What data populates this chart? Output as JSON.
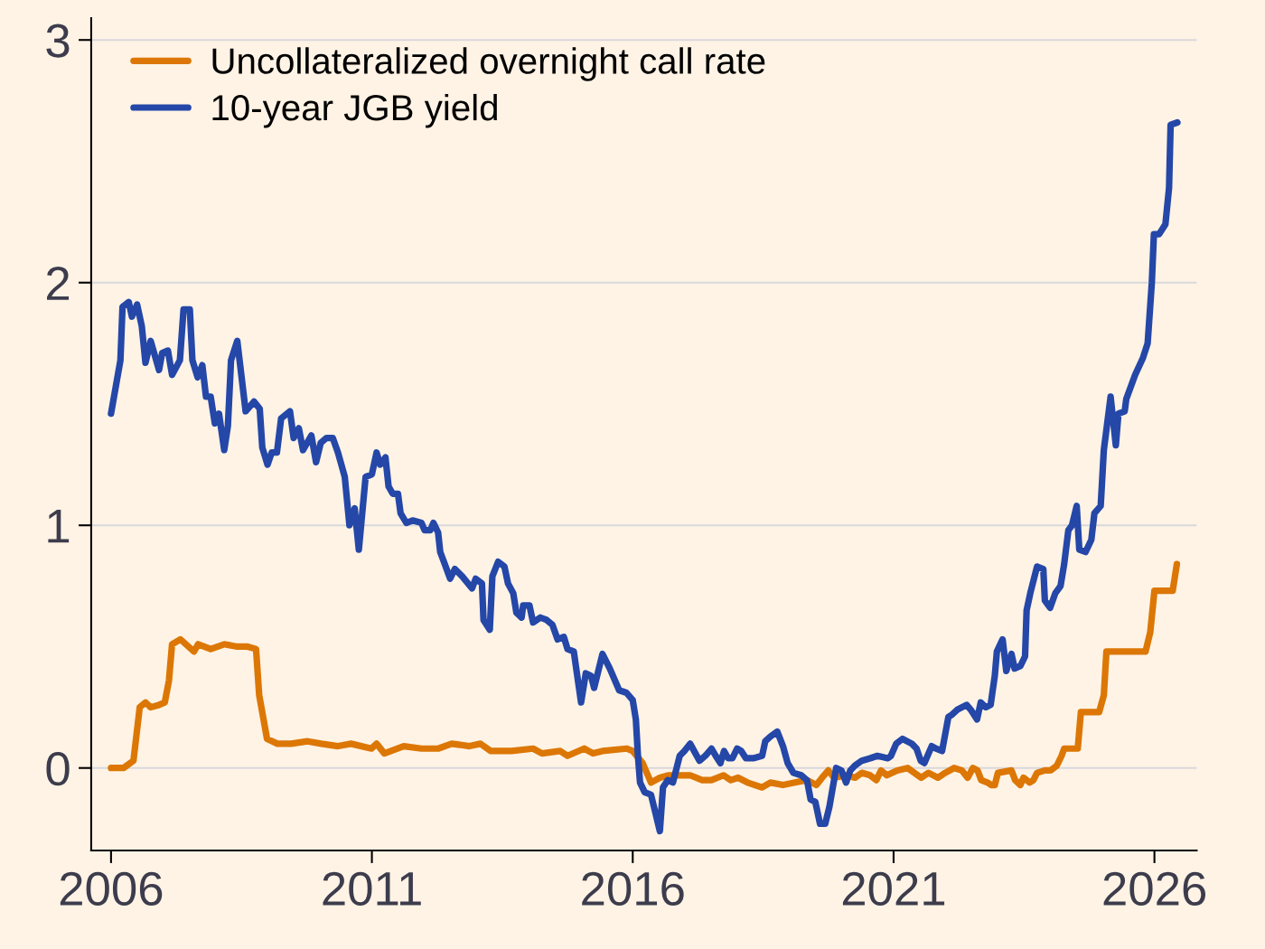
{
  "chart_data": {
    "type": "line",
    "series": [
      {
        "name": "Uncollateralized overnight call rate",
        "color": "#dc7705",
        "x": [
          2006.0,
          2006.24,
          2006.43,
          2006.55,
          2006.66,
          2006.76,
          2006.92,
          2007.03,
          2007.11,
          2007.17,
          2007.33,
          2007.59,
          2007.67,
          2007.91,
          2008.17,
          2008.42,
          2008.62,
          2008.78,
          2008.84,
          2008.99,
          2009.19,
          2009.45,
          2009.77,
          2010.03,
          2010.35,
          2010.6,
          2010.99,
          2011.09,
          2011.24,
          2011.61,
          2011.95,
          2012.27,
          2012.53,
          2012.87,
          2013.08,
          2013.28,
          2013.68,
          2014.09,
          2014.26,
          2014.61,
          2014.75,
          2015.07,
          2015.24,
          2015.42,
          2015.88,
          2016.0,
          2016.19,
          2016.35,
          2016.52,
          2016.69,
          2017.1,
          2017.33,
          2017.51,
          2017.74,
          2017.88,
          2018.02,
          2018.2,
          2018.48,
          2018.64,
          2018.88,
          2019.11,
          2019.34,
          2019.52,
          2019.63,
          2019.75,
          2019.86,
          2020.09,
          2020.26,
          2020.39,
          2020.55,
          2020.67,
          2020.76,
          2020.87,
          2021.07,
          2021.27,
          2021.53,
          2021.67,
          2021.85,
          2021.99,
          2022.16,
          2022.31,
          2022.42,
          2022.52,
          2022.61,
          2022.68,
          2022.8,
          2022.87,
          2022.94,
          2023.0,
          2023.26,
          2023.33,
          2023.43,
          2023.49,
          2023.61,
          2023.68,
          2023.75,
          2023.9,
          2024.01,
          2024.13,
          2024.22,
          2024.27,
          2024.53,
          2024.59,
          2024.94,
          2025.03,
          2025.08,
          2025.83,
          2025.92,
          2026.0,
          2026.35,
          2026.43
        ],
        "values": [
          0.0,
          0.0,
          0.03,
          0.25,
          0.27,
          0.25,
          0.26,
          0.27,
          0.36,
          0.51,
          0.53,
          0.48,
          0.51,
          0.49,
          0.51,
          0.5,
          0.5,
          0.49,
          0.3,
          0.12,
          0.1,
          0.1,
          0.11,
          0.1,
          0.09,
          0.1,
          0.08,
          0.1,
          0.06,
          0.09,
          0.08,
          0.08,
          0.1,
          0.09,
          0.1,
          0.07,
          0.07,
          0.08,
          0.06,
          0.07,
          0.05,
          0.08,
          0.06,
          0.07,
          0.08,
          0.07,
          0.02,
          -0.06,
          -0.04,
          -0.03,
          -0.03,
          -0.05,
          -0.05,
          -0.03,
          -0.05,
          -0.04,
          -0.06,
          -0.08,
          -0.06,
          -0.07,
          -0.06,
          -0.05,
          -0.07,
          -0.04,
          -0.01,
          -0.04,
          -0.03,
          -0.04,
          -0.02,
          -0.03,
          -0.05,
          -0.01,
          -0.03,
          -0.01,
          0.0,
          -0.04,
          -0.02,
          -0.04,
          -0.02,
          0.0,
          -0.01,
          -0.04,
          0.0,
          -0.01,
          -0.05,
          -0.06,
          -0.07,
          -0.07,
          -0.02,
          -0.01,
          -0.05,
          -0.07,
          -0.04,
          -0.06,
          -0.05,
          -0.02,
          -0.01,
          -0.01,
          0.01,
          0.05,
          0.08,
          0.08,
          0.23,
          0.23,
          0.3,
          0.48,
          0.48,
          0.56,
          0.73,
          0.73,
          0.84
        ]
      },
      {
        "name": "10-year JGB yield",
        "color": "#2447a8",
        "x": [
          2006.0,
          2006.18,
          2006.22,
          2006.34,
          2006.4,
          2006.5,
          2006.59,
          2006.66,
          2006.76,
          2006.92,
          2006.98,
          2007.09,
          2007.17,
          2007.32,
          2007.39,
          2007.51,
          2007.56,
          2007.66,
          2007.75,
          2007.82,
          2007.91,
          2007.99,
          2008.07,
          2008.17,
          2008.24,
          2008.3,
          2008.42,
          2008.58,
          2008.74,
          2008.85,
          2008.9,
          2009.0,
          2009.08,
          2009.18,
          2009.26,
          2009.43,
          2009.5,
          2009.6,
          2009.68,
          2009.84,
          2009.93,
          2010.02,
          2010.13,
          2010.25,
          2010.35,
          2010.48,
          2010.57,
          2010.67,
          2010.75,
          2010.88,
          2011.0,
          2011.09,
          2011.16,
          2011.26,
          2011.32,
          2011.4,
          2011.5,
          2011.55,
          2011.66,
          2011.78,
          2011.95,
          2012.01,
          2012.12,
          2012.18,
          2012.27,
          2012.31,
          2012.38,
          2012.5,
          2012.59,
          2012.73,
          2012.92,
          2012.99,
          2013.11,
          2013.14,
          2013.26,
          2013.31,
          2013.42,
          2013.54,
          2013.61,
          2013.71,
          2013.77,
          2013.87,
          2013.9,
          2014.02,
          2014.09,
          2014.23,
          2014.35,
          2014.46,
          2014.56,
          2014.68,
          2014.75,
          2014.87,
          2015.01,
          2015.1,
          2015.2,
          2015.26,
          2015.42,
          2015.56,
          2015.74,
          2015.88,
          2016.0,
          2016.06,
          2016.1,
          2016.14,
          2016.23,
          2016.35,
          2016.43,
          2016.52,
          2016.58,
          2016.67,
          2016.77,
          2016.9,
          2016.99,
          2017.1,
          2017.28,
          2017.39,
          2017.51,
          2017.59,
          2017.68,
          2017.75,
          2017.83,
          2017.91,
          2018.0,
          2018.08,
          2018.17,
          2018.31,
          2018.48,
          2018.54,
          2018.64,
          2018.77,
          2018.88,
          2018.97,
          2019.08,
          2019.23,
          2019.34,
          2019.41,
          2019.5,
          2019.59,
          2019.69,
          2019.77,
          2019.9,
          2020.0,
          2020.09,
          2020.17,
          2020.26,
          2020.39,
          2020.55,
          2020.69,
          2020.89,
          2020.95,
          2021.05,
          2021.17,
          2021.35,
          2021.44,
          2021.52,
          2021.59,
          2021.73,
          2021.81,
          2021.93,
          2022.05,
          2022.12,
          2022.22,
          2022.4,
          2022.48,
          2022.6,
          2022.67,
          2022.77,
          2022.86,
          2022.94,
          2022.98,
          2023.09,
          2023.16,
          2023.26,
          2023.32,
          2023.43,
          2023.52,
          2023.55,
          2023.62,
          2023.75,
          2023.87,
          2023.9,
          2024.0,
          2024.1,
          2024.2,
          2024.27,
          2024.35,
          2024.42,
          2024.51,
          2024.56,
          2024.68,
          2024.79,
          2024.85,
          2024.97,
          2025.03,
          2025.16,
          2025.26,
          2025.31,
          2025.43,
          2025.46,
          2025.63,
          2025.78,
          2025.87,
          2025.95,
          2025.99,
          2026.09,
          2026.21,
          2026.28,
          2026.31,
          2026.44
        ],
        "values": [
          1.46,
          1.68,
          1.9,
          1.92,
          1.86,
          1.91,
          1.82,
          1.67,
          1.76,
          1.64,
          1.71,
          1.72,
          1.62,
          1.68,
          1.89,
          1.89,
          1.68,
          1.61,
          1.66,
          1.53,
          1.53,
          1.42,
          1.46,
          1.31,
          1.41,
          1.68,
          1.76,
          1.47,
          1.51,
          1.48,
          1.32,
          1.25,
          1.3,
          1.3,
          1.44,
          1.47,
          1.36,
          1.4,
          1.31,
          1.37,
          1.26,
          1.34,
          1.36,
          1.36,
          1.3,
          1.2,
          1.0,
          1.07,
          0.9,
          1.2,
          1.21,
          1.3,
          1.25,
          1.28,
          1.16,
          1.13,
          1.13,
          1.05,
          1.01,
          1.02,
          1.01,
          0.98,
          0.98,
          1.01,
          0.97,
          0.89,
          0.85,
          0.78,
          0.82,
          0.79,
          0.74,
          0.78,
          0.76,
          0.61,
          0.57,
          0.79,
          0.85,
          0.83,
          0.76,
          0.72,
          0.64,
          0.62,
          0.67,
          0.67,
          0.6,
          0.62,
          0.61,
          0.59,
          0.53,
          0.54,
          0.49,
          0.48,
          0.27,
          0.39,
          0.38,
          0.33,
          0.47,
          0.41,
          0.32,
          0.31,
          0.28,
          0.2,
          0.05,
          -0.06,
          -0.1,
          -0.11,
          -0.18,
          -0.26,
          -0.08,
          -0.05,
          -0.06,
          0.05,
          0.07,
          0.1,
          0.03,
          0.05,
          0.08,
          0.05,
          0.02,
          0.07,
          0.04,
          0.04,
          0.08,
          0.07,
          0.04,
          0.04,
          0.05,
          0.11,
          0.13,
          0.15,
          0.09,
          0.02,
          -0.02,
          -0.03,
          -0.05,
          -0.13,
          -0.14,
          -0.23,
          -0.23,
          -0.16,
          0.0,
          -0.01,
          -0.06,
          -0.01,
          0.01,
          0.03,
          0.04,
          0.05,
          0.04,
          0.05,
          0.1,
          0.12,
          0.1,
          0.08,
          0.03,
          0.02,
          0.09,
          0.08,
          0.07,
          0.21,
          0.22,
          0.24,
          0.26,
          0.24,
          0.2,
          0.27,
          0.25,
          0.26,
          0.38,
          0.48,
          0.53,
          0.4,
          0.47,
          0.41,
          0.42,
          0.46,
          0.65,
          0.72,
          0.83,
          0.82,
          0.69,
          0.66,
          0.72,
          0.75,
          0.84,
          0.98,
          1.0,
          1.08,
          0.9,
          0.89,
          0.94,
          1.05,
          1.08,
          1.31,
          1.53,
          1.33,
          1.46,
          1.47,
          1.52,
          1.62,
          1.69,
          1.75,
          2.0,
          2.2,
          2.2,
          2.24,
          2.39,
          2.65,
          2.66
        ]
      }
    ],
    "xlim": [
      2005.62,
      2026.81
    ],
    "ylim": [
      -0.34,
      3.09
    ],
    "xticks": [
      2006,
      2011,
      2016,
      2021,
      2026
    ],
    "yticks": [
      0,
      1,
      2,
      3
    ],
    "grid": "y",
    "legend": "top left"
  }
}
